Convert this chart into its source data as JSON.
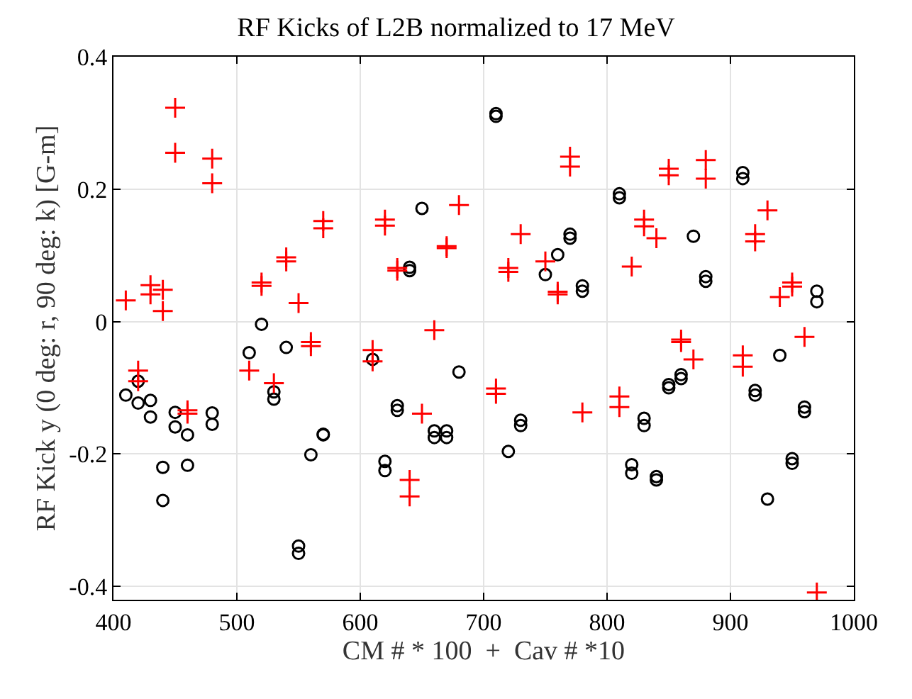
{
  "chart_data": {
    "type": "scatter",
    "title": "RF Kicks of L2B normalized to 17 MeV",
    "xlabel": "CM # * 100  +  Cav # *10",
    "ylabel": "RF Kick y (0 deg: r, 90 deg: k) [G-m]",
    "xlim": [
      400,
      1000
    ],
    "xticks": [
      400,
      500,
      600,
      700,
      800,
      900,
      1000
    ],
    "ylim": [
      -0.42,
      0.4
    ],
    "yticks": [
      -0.4,
      -0.2,
      0,
      0.2,
      0.4
    ],
    "grid": true,
    "series": [
      {
        "color": "#000000",
        "marker": "circle",
        "x": [
          410,
          420,
          420,
          430,
          430,
          440,
          440,
          450,
          450,
          460,
          460,
          480,
          480,
          510,
          520,
          530,
          530,
          540,
          550,
          550,
          560,
          570,
          570,
          610,
          620,
          620,
          630,
          630,
          640,
          640,
          650,
          660,
          660,
          670,
          670,
          680,
          710,
          710,
          720,
          730,
          730,
          750,
          760,
          770,
          770,
          780,
          780,
          810,
          810,
          820,
          820,
          830,
          830,
          840,
          840,
          850,
          850,
          860,
          860,
          870,
          880,
          880,
          910,
          910,
          920,
          920,
          930,
          940,
          950,
          950,
          960,
          960,
          970,
          970
        ],
        "values": [
          -0.111,
          -0.09,
          -0.123,
          -0.119,
          -0.144,
          -0.22,
          -0.27,
          -0.137,
          -0.159,
          -0.171,
          -0.217,
          -0.138,
          -0.155,
          -0.047,
          -0.004,
          -0.106,
          -0.117,
          -0.039,
          -0.339,
          -0.35,
          -0.201,
          -0.17,
          -0.171,
          -0.057,
          -0.211,
          -0.225,
          -0.127,
          -0.134,
          0.082,
          0.077,
          0.171,
          -0.165,
          -0.175,
          -0.165,
          -0.175,
          -0.076,
          0.31,
          0.314,
          -0.196,
          -0.149,
          -0.157,
          0.071,
          0.101,
          0.132,
          0.126,
          0.054,
          0.046,
          0.193,
          0.187,
          -0.216,
          -0.229,
          -0.146,
          -0.157,
          -0.234,
          -0.239,
          -0.095,
          -0.1,
          -0.08,
          -0.086,
          0.129,
          0.068,
          0.061,
          0.225,
          0.216,
          -0.104,
          -0.111,
          -0.268,
          -0.051,
          -0.207,
          -0.214,
          -0.129,
          -0.136,
          0.046,
          0.03
        ]
      },
      {
        "color": "#ff0000",
        "marker": "cross",
        "x": [
          410,
          420,
          420,
          430,
          430,
          440,
          440,
          450,
          450,
          460,
          460,
          480,
          480,
          510,
          520,
          520,
          530,
          540,
          540,
          550,
          560,
          560,
          570,
          570,
          610,
          610,
          620,
          620,
          630,
          630,
          640,
          640,
          650,
          660,
          670,
          670,
          680,
          710,
          710,
          720,
          720,
          730,
          750,
          760,
          760,
          770,
          770,
          780,
          810,
          810,
          820,
          830,
          830,
          840,
          850,
          850,
          860,
          860,
          870,
          880,
          880,
          910,
          910,
          920,
          920,
          930,
          940,
          950,
          950,
          960,
          970
        ],
        "values": [
          0.032,
          -0.074,
          -0.09,
          0.055,
          0.041,
          0.048,
          0.016,
          0.323,
          0.255,
          -0.134,
          -0.139,
          0.246,
          0.209,
          -0.074,
          0.059,
          0.054,
          -0.093,
          0.097,
          0.091,
          0.028,
          -0.031,
          -0.037,
          0.152,
          0.141,
          -0.043,
          -0.06,
          0.154,
          0.145,
          0.081,
          0.077,
          -0.239,
          -0.264,
          -0.139,
          -0.013,
          0.114,
          0.111,
          0.176,
          -0.101,
          -0.109,
          0.081,
          0.075,
          0.132,
          0.091,
          0.045,
          0.041,
          0.249,
          0.234,
          -0.137,
          -0.113,
          -0.129,
          0.083,
          0.154,
          0.144,
          0.126,
          0.231,
          0.221,
          -0.027,
          -0.031,
          -0.057,
          0.244,
          0.216,
          -0.051,
          -0.068,
          0.132,
          0.121,
          0.168,
          0.037,
          0.059,
          0.053,
          -0.023,
          -0.409
        ]
      }
    ]
  }
}
